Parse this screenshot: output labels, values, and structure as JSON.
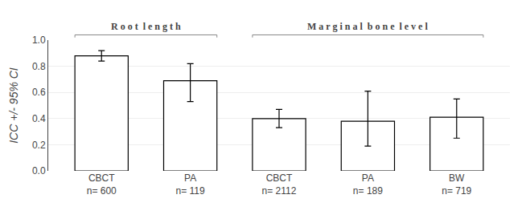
{
  "chart_data": {
    "type": "bar",
    "categories": [
      "CBCT",
      "PA",
      "CBCT",
      "PA",
      "BW"
    ],
    "n_labels": [
      "n= 600",
      "n= 119",
      "n= 2112",
      "n= 189",
      "n= 719"
    ],
    "values": [
      0.88,
      0.69,
      0.4,
      0.38,
      0.41
    ],
    "ci_lower": [
      0.84,
      0.53,
      0.33,
      0.19,
      0.25
    ],
    "ci_upper": [
      0.92,
      0.82,
      0.47,
      0.61,
      0.55
    ],
    "color": "#ffffff",
    "ylabel": "ICC +/- 95% CI",
    "ylim": [
      0,
      1.0
    ],
    "yticks": [
      {
        "value": 0,
        "label": "0.0"
      },
      0.2,
      0.4,
      0.6,
      0.8,
      {
        "value": 1,
        "label": "1.0"
      }
    ],
    "grid": true,
    "annotations": [
      {
        "text": "R o o t  l e n g t h",
        "start": 0,
        "end": 1
      },
      {
        "text": "M a r g i n a l  b o n e  l e v e l",
        "start": 2,
        "end": 4
      }
    ]
  }
}
